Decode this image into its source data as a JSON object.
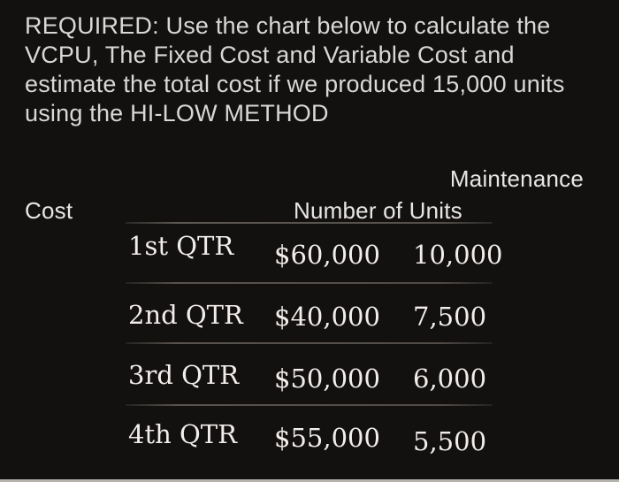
{
  "colors": {
    "background": "#131010",
    "paragraph_text": "#dad8d7",
    "header_text": "#e9e7e6",
    "data_text": "#f0edea",
    "divider": "#55504b",
    "bottom_bar": "#b6b3af"
  },
  "question": {
    "full_text": "REQUIRED: Use the chart below to calculate the VCPU, The Fixed Cost and Variable Cost and estimate the total cost if we produced 15,000 units using the HI-LOW METHOD",
    "lines": [
      "REQUIRED: Use the chart below to calculate the",
      "VCPU, The Fixed Cost and Variable Cost and",
      "estimate the total cost if we produced 15,000 units",
      "using the HI-LOW METHOD"
    ]
  },
  "table": {
    "header": {
      "maintenance": "Maintenance",
      "cost": "Cost",
      "units": "Number of Units"
    },
    "rows": [
      {
        "label": "1st QTR",
        "cost": "$60,000",
        "units": "10,000"
      },
      {
        "label": "2nd QTR",
        "cost": "$40,000",
        "units": "7,500"
      },
      {
        "label": "3rd QTR",
        "cost": "$50,000",
        "units": "6,000"
      },
      {
        "label": "4th QTR",
        "cost": "$55,000",
        "units": "5,500"
      }
    ]
  },
  "chart_data": {
    "type": "table",
    "title": "Maintenance Cost / Number of Units by Quarter",
    "categories": [
      "1st QTR",
      "2nd QTR",
      "3rd QTR",
      "4th QTR"
    ],
    "series": [
      {
        "name": "Maintenance Cost",
        "values": [
          60000,
          40000,
          50000,
          55000
        ]
      },
      {
        "name": "Number of Units",
        "values": [
          10000,
          7500,
          6000,
          5500
        ]
      }
    ]
  }
}
